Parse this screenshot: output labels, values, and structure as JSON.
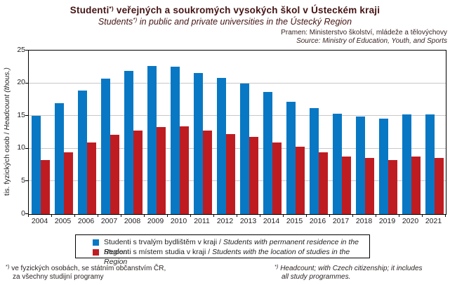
{
  "header": {
    "title_cs_prefix": "Studenti",
    "title_marker": "*)",
    "title_cs_suffix": " veřejných a soukromých vysokých škol v Ústeckém kraji",
    "title_en_prefix": "Students",
    "title_en_suffix": " in public and private universities in the Ústecký Region",
    "source_cs": "Pramen: Ministerstvo školství, mládeže a tělovýchovy",
    "source_en": "Source: Ministry of Education, Youth, and Sports"
  },
  "chart_data": {
    "type": "bar",
    "title": "Studenti veřejných a soukromých vysokých škol v Ústeckém kraji / Students in public and private universities in the Ústecký Region",
    "categories": [
      "2004",
      "2005",
      "2006",
      "2007",
      "2008",
      "2009",
      "2010",
      "2011",
      "2012",
      "2013",
      "2014",
      "2015",
      "2016",
      "2017",
      "2018",
      "2019",
      "2020",
      "2021"
    ],
    "series": [
      {
        "name": "Studenti s trvalým bydlištěm v kraji / Students with permanent residence in the Region",
        "color": "#0878c4",
        "values": [
          15.0,
          17.0,
          18.9,
          20.7,
          21.9,
          22.6,
          22.5,
          21.6,
          20.8,
          20.0,
          18.7,
          17.2,
          16.2,
          15.3,
          14.9,
          14.6,
          15.2,
          15.2
        ]
      },
      {
        "name": "Studenti s místem studia v kraji / Students with the location of studies in the Region",
        "color": "#bf1c22",
        "values": [
          8.3,
          9.4,
          11.0,
          12.1,
          12.8,
          13.3,
          13.4,
          12.8,
          12.2,
          11.8,
          11.0,
          10.3,
          9.4,
          8.8,
          8.6,
          8.3,
          8.8,
          8.6
        ]
      }
    ],
    "xlabel": "",
    "ylabel": "tis. fyzických osob / Headcount (thous.)",
    "ylim": [
      0,
      25
    ],
    "yticks": [
      0,
      5,
      10,
      15,
      20,
      25
    ],
    "grid": true,
    "legend_position": "bottom"
  },
  "ylabel_parts": {
    "cs": "tis. fyzických osob / ",
    "en": "Headcount (thous.)"
  },
  "legend": {
    "items": [
      {
        "cs": "Studenti s trvalým bydlištěm v kraji / ",
        "en": "Students with permanent residence in the Region",
        "color": "#0878c4"
      },
      {
        "cs": "Studenti s místem studia v kraji / ",
        "en": "Students with the location of studies in the Region",
        "color": "#bf1c22"
      }
    ]
  },
  "footnotes": {
    "left_marker": "*)",
    "left_line1": " ve fyzických osobách, se státním občanstvím ČR,",
    "left_line2": "za všechny studijní programy",
    "right_marker": "*)",
    "right_line1": " Headcount; with Czech citizenship; it includes",
    "right_line2": "all study programmes."
  },
  "colors": {
    "bar_blue": "#0878c4",
    "bar_red": "#bf1c22",
    "gridline": "#c8c8c8",
    "title_text": "#451414",
    "axis": "#000000"
  }
}
